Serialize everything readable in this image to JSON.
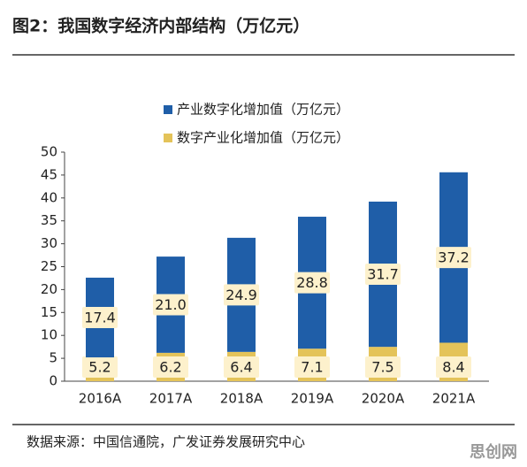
{
  "chart_data": {
    "type": "stacked_bar",
    "title": "图2：我国数字经济内部结构（万亿元）",
    "source": "数据来源：中国信通院，广发证券发展研究中心",
    "watermark": "思创网",
    "categories": [
      "2016A",
      "2017A",
      "2018A",
      "2019A",
      "2020A",
      "2021A"
    ],
    "series": [
      {
        "name": "数字产业化增加值（万亿元）",
        "color": "#e4c359",
        "values": [
          5.2,
          6.2,
          6.4,
          7.1,
          7.5,
          8.4
        ]
      },
      {
        "name": "产业数字化增加值（万亿元）",
        "color": "#1f5ea8",
        "values": [
          17.4,
          21.0,
          24.9,
          28.8,
          31.7,
          37.2
        ],
        "value_labels": [
          "17.4",
          "21.0",
          "24.9",
          "28.8",
          "31.7",
          "37.2"
        ]
      }
    ],
    "ylim": [
      0,
      50
    ],
    "yticks": [
      0,
      5,
      10,
      15,
      20,
      25,
      30,
      35,
      40,
      45,
      50
    ]
  }
}
